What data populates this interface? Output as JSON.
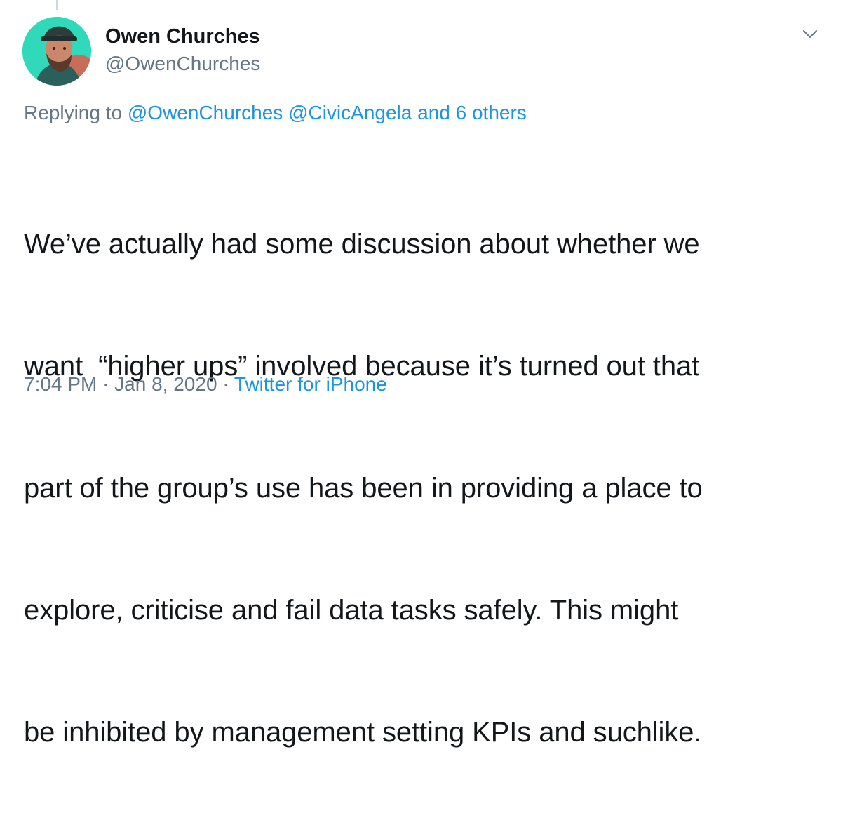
{
  "author": {
    "name": "Owen Churches",
    "handle": "@OwenChurches"
  },
  "reply": {
    "prefix": "Replying to ",
    "mention1": "@OwenChurches",
    "mention2": "@CivicAngela",
    "others": "and 6 others"
  },
  "tweet": {
    "lines": [
      "We’ve actually had some discussion about whether we",
      "want  “higher ups” involved because it’s turned out that",
      "part of the group’s use has been in providing a place to",
      "explore, criticise and fail data tasks safely. This might",
      "be inhibited by management setting KPIs and suchlike."
    ]
  },
  "meta": {
    "time": "7:04 PM",
    "separator": " · ",
    "date": "Jan 8, 2020",
    "source": "Twitter for iPhone"
  },
  "colors": {
    "link": "#1b95e0",
    "secondary": "#657786",
    "avatar_bg": "#2fd9b9"
  },
  "icons": {
    "more": "chevron-down-icon"
  }
}
